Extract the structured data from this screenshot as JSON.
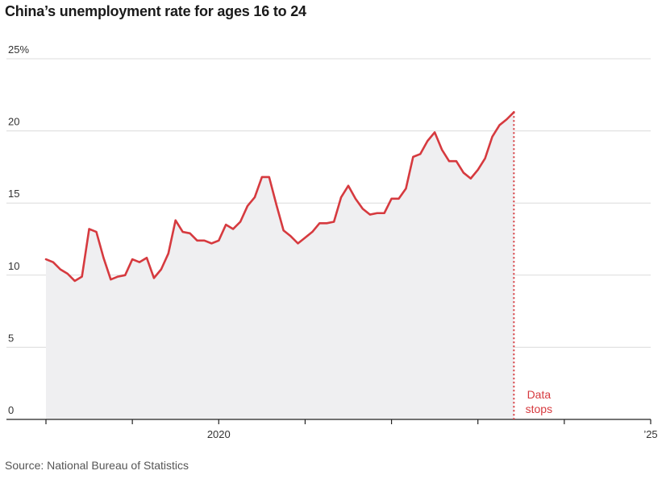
{
  "chart_data": {
    "type": "area",
    "title": "China’s unemployment rate for ages 16 to 24",
    "source": "Source: National Bureau of Statistics",
    "xlabel": "",
    "ylabel": "",
    "ylim": [
      0,
      25
    ],
    "y_ticks": [
      {
        "value": 25,
        "label": "25%"
      },
      {
        "value": 20,
        "label": "20"
      },
      {
        "value": 15,
        "label": "15"
      },
      {
        "value": 10,
        "label": "10"
      },
      {
        "value": 5,
        "label": "5"
      },
      {
        "value": 0,
        "label": "0"
      }
    ],
    "x_labels": [
      {
        "year": 2020,
        "label": "2020"
      },
      {
        "year": 2025,
        "label": "’25"
      }
    ],
    "x_range": [
      "2018-01",
      "2025-01"
    ],
    "x_tick_years": [
      2018,
      2019,
      2020,
      2021,
      2022,
      2023,
      2024,
      2025
    ],
    "grid": true,
    "line_color": "#d63a3f",
    "fill_color": "#efeff1",
    "annotation": {
      "text_lines": [
        "Data",
        "stops"
      ],
      "date": "2023-06",
      "color": "#d63a3f"
    },
    "series": [
      {
        "start": "2018-01",
        "values": [
          11.1,
          10.9,
          10.4,
          10.1,
          9.6,
          9.9,
          13.2,
          13.0,
          11.2,
          9.7,
          9.9,
          10.0,
          11.1,
          10.9,
          11.2,
          9.8,
          10.4,
          11.5,
          13.8,
          13.0,
          12.9,
          12.4,
          12.4,
          12.2,
          12.4,
          13.5,
          13.2,
          13.7,
          14.8,
          15.4,
          16.8,
          16.8,
          14.9,
          13.1,
          12.7,
          12.2,
          12.6,
          13.0,
          13.6,
          13.6,
          13.7,
          15.4,
          16.2,
          15.3,
          14.6,
          14.2,
          14.3,
          14.3,
          15.3,
          15.3,
          16.0,
          18.2,
          18.4,
          19.3,
          19.9,
          18.7,
          17.9,
          17.9,
          17.1,
          16.7,
          17.3,
          18.1,
          19.6,
          20.4,
          20.8,
          21.3
        ]
      }
    ]
  }
}
